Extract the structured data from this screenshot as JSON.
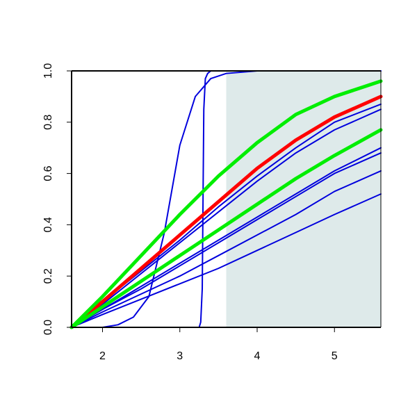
{
  "chart_data": {
    "type": "line",
    "title": "",
    "xlabel": "",
    "ylabel": "",
    "xlim": [
      1.6,
      5.6
    ],
    "ylim": [
      0,
      1
    ],
    "x_ticks": [
      2,
      3,
      4,
      5
    ],
    "y_ticks": [
      0.0,
      0.2,
      0.4,
      0.6,
      0.8,
      1.0
    ],
    "x_tick_labels": [
      "2",
      "3",
      "4",
      "5"
    ],
    "y_tick_labels": [
      "0.0",
      "0.2",
      "0.4",
      "0.6",
      "0.8",
      "1.0"
    ],
    "shaded_region": {
      "x": [
        3.6,
        5.6
      ],
      "color": "#deeaea"
    },
    "grid": false,
    "legend": "none",
    "series": [
      {
        "color": "#ff0000",
        "style": "thick",
        "x": [
          1.6,
          2.0,
          2.5,
          3.0,
          3.5,
          4.0,
          4.5,
          5.0,
          5.6
        ],
        "values": [
          0.0,
          0.1,
          0.23,
          0.36,
          0.49,
          0.62,
          0.73,
          0.82,
          0.9
        ]
      },
      {
        "color": "#00ee00",
        "style": "thick",
        "x": [
          1.6,
          2.0,
          2.5,
          3.0,
          3.5,
          4.0,
          4.5,
          5.0,
          5.6
        ],
        "values": [
          0.0,
          0.12,
          0.28,
          0.44,
          0.59,
          0.72,
          0.83,
          0.9,
          0.96
        ]
      },
      {
        "color": "#00ee00",
        "style": "thick",
        "x": [
          1.6,
          2.0,
          2.5,
          3.0,
          3.5,
          4.0,
          4.5,
          5.0,
          5.6
        ],
        "values": [
          0.0,
          0.08,
          0.18,
          0.28,
          0.38,
          0.48,
          0.58,
          0.67,
          0.77
        ]
      },
      {
        "color": "#0000dd",
        "style": "thin",
        "x": [
          1.6,
          2.0,
          2.5,
          3.0,
          3.5,
          4.0,
          4.5,
          5.0,
          5.6
        ],
        "values": [
          0.0,
          0.1,
          0.22,
          0.34,
          0.47,
          0.59,
          0.7,
          0.8,
          0.87
        ]
      },
      {
        "color": "#0000dd",
        "style": "thin",
        "x": [
          1.6,
          2.0,
          2.5,
          3.0,
          3.5,
          4.0,
          4.5,
          5.0,
          5.6
        ],
        "values": [
          0.0,
          0.09,
          0.21,
          0.33,
          0.45,
          0.57,
          0.68,
          0.77,
          0.85
        ]
      },
      {
        "color": "#0000dd",
        "style": "thin",
        "x": [
          1.6,
          2.0,
          2.5,
          3.0,
          3.5,
          4.0,
          4.5,
          5.0,
          5.6
        ],
        "values": [
          0.0,
          0.07,
          0.16,
          0.25,
          0.34,
          0.43,
          0.52,
          0.61,
          0.7
        ]
      },
      {
        "color": "#0000dd",
        "style": "thin",
        "x": [
          1.6,
          2.0,
          2.5,
          3.0,
          3.5,
          4.0,
          4.5,
          5.0,
          5.6
        ],
        "values": [
          0.0,
          0.07,
          0.15,
          0.24,
          0.33,
          0.42,
          0.51,
          0.6,
          0.68
        ]
      },
      {
        "color": "#0000dd",
        "style": "thin",
        "x": [
          1.6,
          2.0,
          2.5,
          3.0,
          3.5,
          4.0,
          4.5,
          5.0,
          5.6
        ],
        "values": [
          0.0,
          0.06,
          0.13,
          0.2,
          0.28,
          0.36,
          0.44,
          0.53,
          0.61
        ]
      },
      {
        "color": "#0000dd",
        "style": "thin",
        "x": [
          1.6,
          2.0,
          2.5,
          3.0,
          3.5,
          4.0,
          4.5,
          5.0,
          5.6
        ],
        "values": [
          0.0,
          0.05,
          0.11,
          0.17,
          0.23,
          0.3,
          0.37,
          0.44,
          0.52
        ]
      },
      {
        "color": "#0000dd",
        "style": "thin",
        "x": [
          1.6,
          2.0,
          2.2,
          2.4,
          2.6,
          2.8,
          3.0,
          3.2,
          3.4,
          3.6,
          4.0,
          5.0,
          5.6
        ],
        "values": [
          0.0,
          0.0,
          0.01,
          0.04,
          0.12,
          0.37,
          0.71,
          0.9,
          0.97,
          0.99,
          1.0,
          1.0,
          1.0
        ]
      },
      {
        "color": "#0000dd",
        "style": "thin",
        "x": [
          1.6,
          3.25,
          3.27,
          3.29,
          3.3,
          3.31,
          3.33,
          3.36,
          3.4,
          3.5,
          5.6
        ],
        "values": [
          0.0,
          0.0,
          0.02,
          0.15,
          0.5,
          0.85,
          0.97,
          0.99,
          1.0,
          1.0,
          1.0
        ]
      }
    ]
  }
}
